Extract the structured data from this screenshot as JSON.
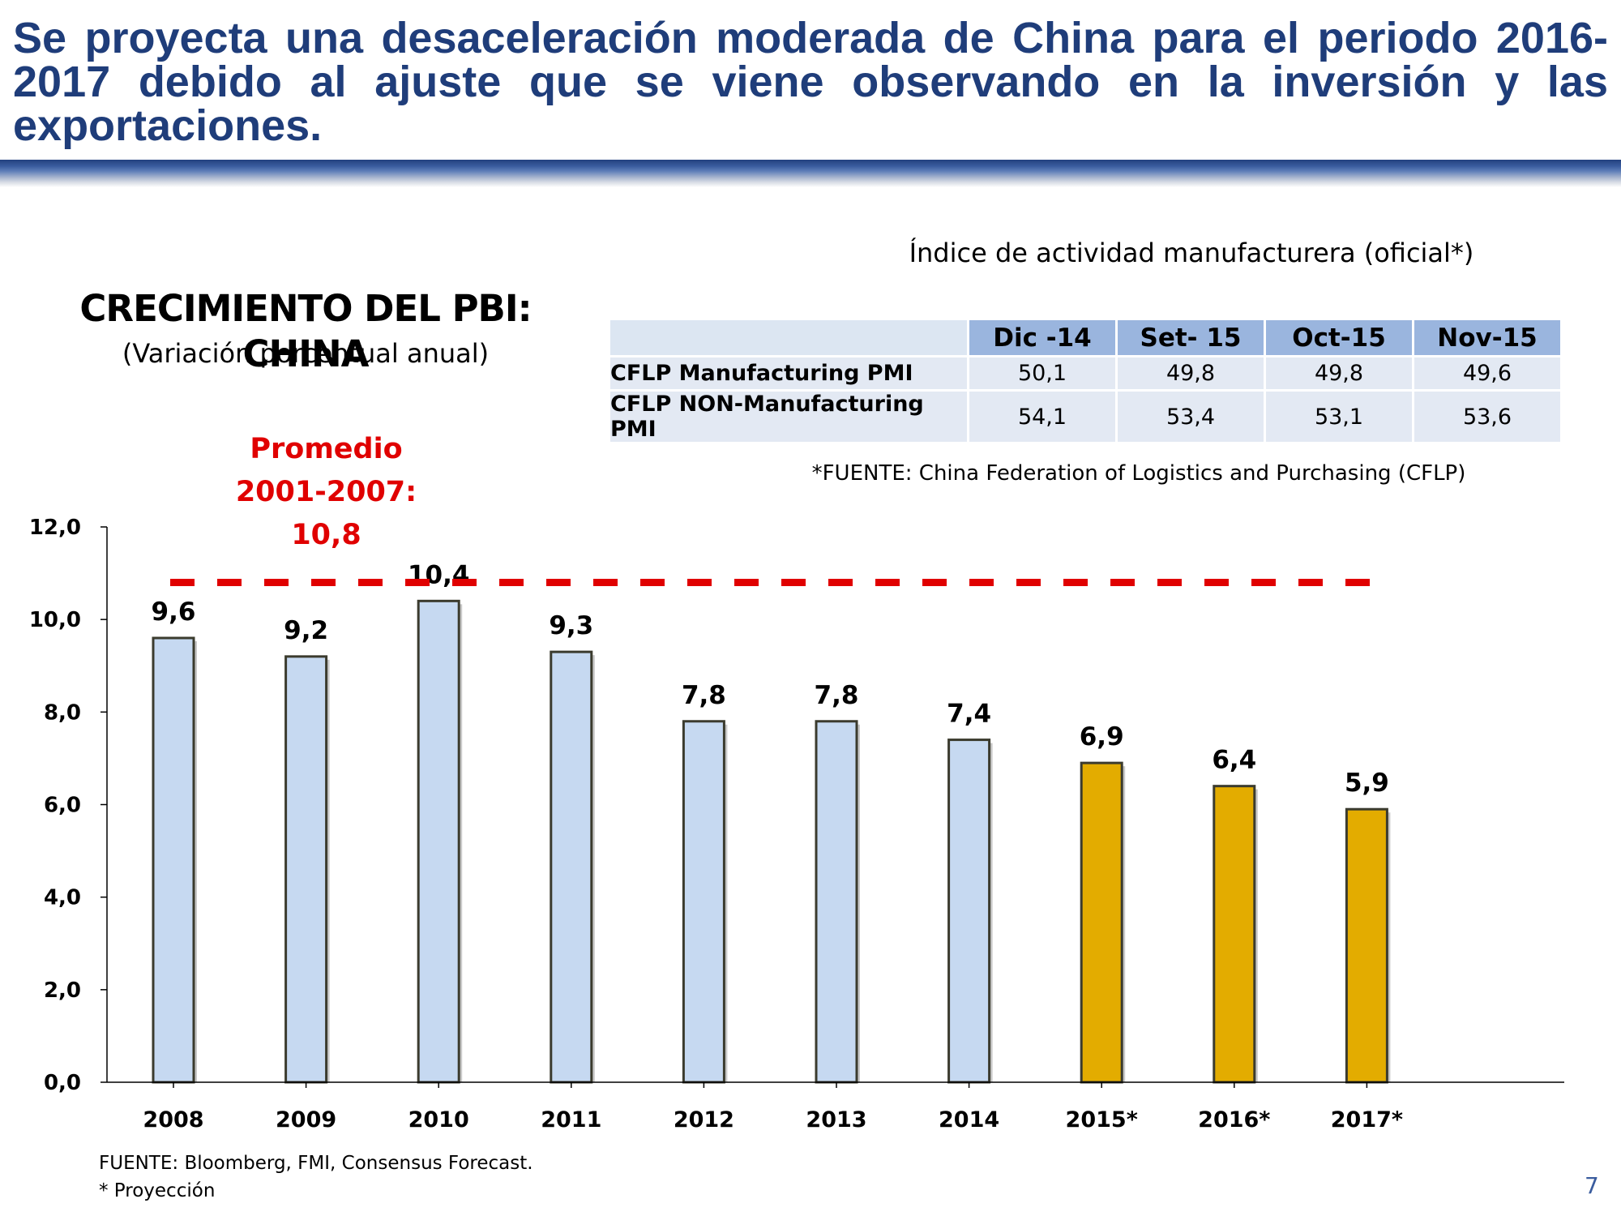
{
  "slide": {
    "headline": "Se proyecta una desaceleración moderada de China para el periodo 2016-2017 debido al ajuste que se viene observando en la inversión y las exportaciones.",
    "page_number": "7",
    "footer_source": "FUENTE: Bloomberg, FMI, Consensus Forecast.",
    "footer_note": "* Proyección"
  },
  "colors": {
    "headline": "#1f3d7a",
    "bar_actual": "#c6d9f1",
    "bar_projection": "#e3ac00",
    "bar_stroke": "#3b3b2e",
    "average_line": "#e00000",
    "table_header": "#9ab5de",
    "table_cell": "#e3e9f3"
  },
  "chart_data": {
    "type": "bar",
    "title": "CRECIMIENTO DEL PBI: CHINA",
    "subtitle": "(Variación porcentual anual)",
    "xlabel": "",
    "ylabel": "",
    "ylim": [
      0,
      12
    ],
    "grid": false,
    "yticks": [
      "0,0",
      "2,0",
      "4,0",
      "6,0",
      "8,0",
      "10,0",
      "12,0"
    ],
    "categories": [
      "2008",
      "2009",
      "2010",
      "2011",
      "2012",
      "2013",
      "2014",
      "2015*",
      "2016*",
      "2017*"
    ],
    "values": [
      9.6,
      9.2,
      10.4,
      9.3,
      7.8,
      7.8,
      7.4,
      6.9,
      6.4,
      5.9
    ],
    "value_labels": [
      "9,6",
      "9,2",
      "10,4",
      "9,3",
      "7,8",
      "7,8",
      "7,4",
      "6,9",
      "6,4",
      "5,9"
    ],
    "projection": [
      false,
      false,
      false,
      false,
      false,
      false,
      false,
      true,
      true,
      true
    ],
    "average": {
      "value": 10.8,
      "label_line1": "Promedio",
      "label_line2": "2001-2007:",
      "label_line3": "10,8"
    }
  },
  "pmi_table": {
    "title": "Índice de actividad manufacturera (oficial*)",
    "headers": [
      "Dic -14",
      "Set- 15",
      "Oct-15",
      "Nov-15"
    ],
    "rows": [
      {
        "label": "CFLP Manufacturing PMI",
        "values": [
          "50,1",
          "49,8",
          "49,8",
          "49,6"
        ]
      },
      {
        "label": "CFLP NON-Manufacturing PMI",
        "values": [
          "54,1",
          "53,4",
          "53,1",
          "53,6"
        ]
      }
    ],
    "source": "*FUENTE: China Federation of Logistics and Purchasing (CFLP)"
  }
}
